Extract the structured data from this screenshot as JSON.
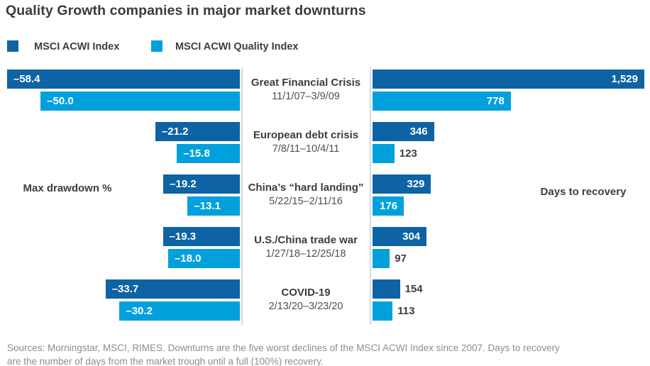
{
  "title": "Quality Growth companies in major market downturns",
  "legend": [
    {
      "label": "MSCI ACWI Index",
      "color": "#0e63a5"
    },
    {
      "label": "MSCI ACWI Quality Index",
      "color": "#00a0dd"
    }
  ],
  "left_axis_label": "Max drawdown %",
  "right_axis_label": "Days to recovery",
  "footer": {
    "line1": "Sources: Morningstar, MSCI, RIMES. Downturns are the five worst declines of the MSCI ACWI Index since 2007. Days to recovery",
    "line2": "are the number of days from the market trough until a full (100%) recovery."
  },
  "chart_data": {
    "type": "bar",
    "orientation": "horizontal",
    "panels": [
      "Max drawdown %",
      "Days to recovery"
    ],
    "series_names": [
      "MSCI ACWI Index",
      "MSCI ACWI Quality Index"
    ],
    "series_colors": [
      "#0e63a5",
      "#00a0dd"
    ],
    "left_axis_range": [
      0,
      -58.4
    ],
    "right_axis_range": [
      0,
      1529
    ],
    "events": [
      {
        "name": "Great Financial Crisis",
        "dates": "11/1/07–3/9/09",
        "drawdown": [
          -58.4,
          -50.0
        ],
        "drawdown_labels": [
          "–58.4",
          "–50.0"
        ],
        "recovery_days": [
          1529,
          778
        ],
        "recovery_labels": [
          "1,529",
          "778"
        ]
      },
      {
        "name": "European debt crisis",
        "dates": "7/8/11–10/4/11",
        "drawdown": [
          -21.2,
          -15.8
        ],
        "drawdown_labels": [
          "–21.2",
          "–15.8"
        ],
        "recovery_days": [
          346,
          123
        ],
        "recovery_labels": [
          "346",
          "123"
        ]
      },
      {
        "name": "China’s “hard landing”",
        "dates": "5/22/15–2/11/16",
        "drawdown": [
          -19.2,
          -13.1
        ],
        "drawdown_labels": [
          "–19.2",
          "–13.1"
        ],
        "recovery_days": [
          329,
          176
        ],
        "recovery_labels": [
          "329",
          "176"
        ]
      },
      {
        "name": "U.S./China trade war",
        "dates": "1/27/18–12/25/18",
        "drawdown": [
          -19.3,
          -18.0
        ],
        "drawdown_labels": [
          "–19.3",
          "–18.0"
        ],
        "recovery_days": [
          304,
          97
        ],
        "recovery_labels": [
          "304",
          "97"
        ]
      },
      {
        "name": "COVID-19",
        "dates": "2/13/20–3/23/20",
        "drawdown": [
          -33.7,
          -30.2
        ],
        "drawdown_labels": [
          "–33.7",
          "–30.2"
        ],
        "recovery_days": [
          154,
          113
        ],
        "recovery_labels": [
          "154",
          "113"
        ]
      }
    ]
  }
}
